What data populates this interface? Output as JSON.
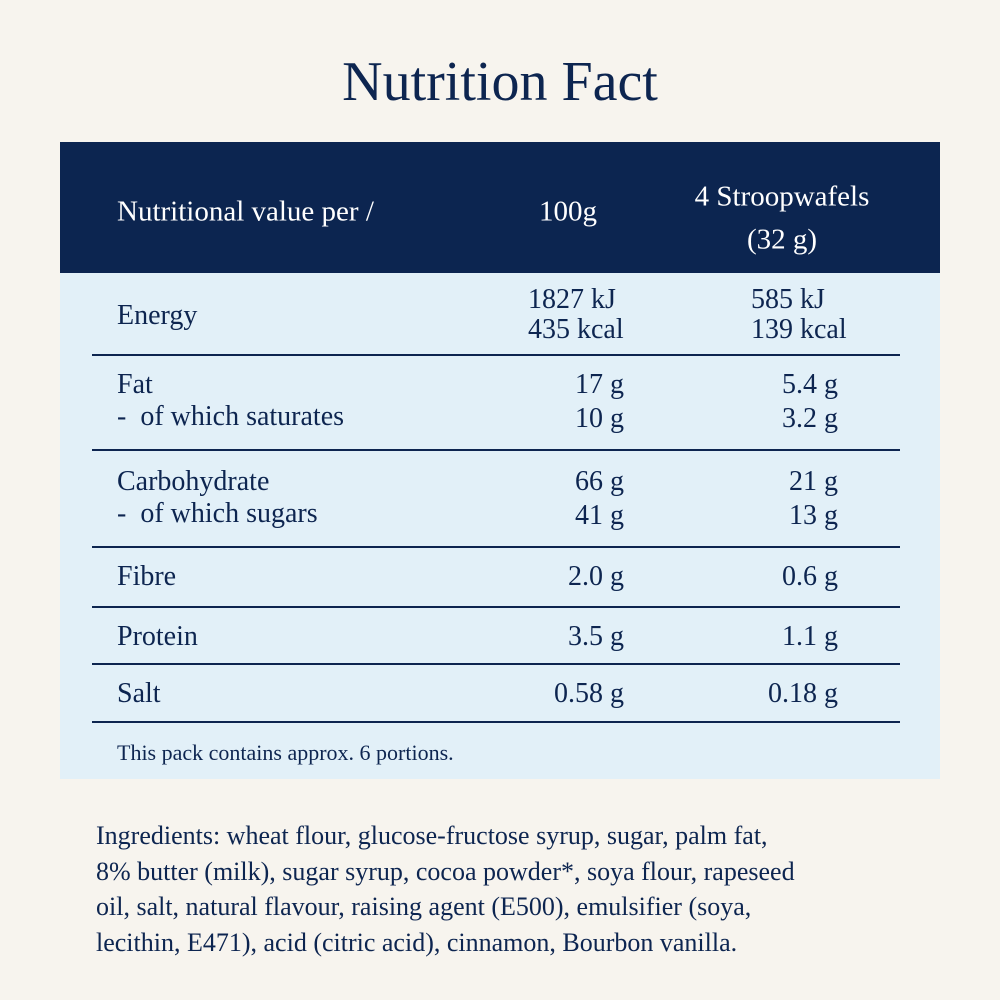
{
  "title": "Nutrition Fact",
  "table": {
    "header": [
      "Nutritional value per /",
      "100g",
      "4 Stroopwafels",
      "(32 g)"
    ],
    "rows": [
      {
        "labels": [
          "Energy"
        ],
        "per_100g": [
          "1827 kJ",
          "435 kcal"
        ],
        "per_portion": [
          "585 kJ",
          "139 kcal"
        ]
      },
      {
        "labels": [
          "Fat",
          "-  of which saturates"
        ],
        "per_100g": [
          "17 g",
          "10 g"
        ],
        "per_portion": [
          "5.4 g",
          "3.2 g"
        ]
      },
      {
        "labels": [
          "Carbohydrate",
          "-  of which sugars"
        ],
        "per_100g": [
          "66 g",
          "41 g"
        ],
        "per_portion": [
          "21 g",
          "13 g"
        ]
      },
      {
        "labels": [
          "Fibre"
        ],
        "per_100g": [
          "2.0 g"
        ],
        "per_portion": [
          "0.6 g"
        ]
      },
      {
        "labels": [
          "Protein"
        ],
        "per_100g": [
          "3.5 g"
        ],
        "per_portion": [
          "1.1 g"
        ]
      },
      {
        "labels": [
          "Salt"
        ],
        "per_100g": [
          "0.58 g"
        ],
        "per_portion": [
          "0.18 g"
        ]
      }
    ],
    "footnote": "This pack contains approx. 6 portions."
  },
  "ingredients": {
    "lines": [
      "Ingredients: wheat flour, glucose-fructose syrup, sugar, palm fat,",
      "8% butter (milk), sugar syrup, cocoa powder*, soya flour, rapeseed",
      "oil, salt, natural flavour, raising agent (E500), emulsifier (soya,",
      "lecithin, E471), acid (citric acid), cinnamon, Bourbon vanilla."
    ]
  }
}
